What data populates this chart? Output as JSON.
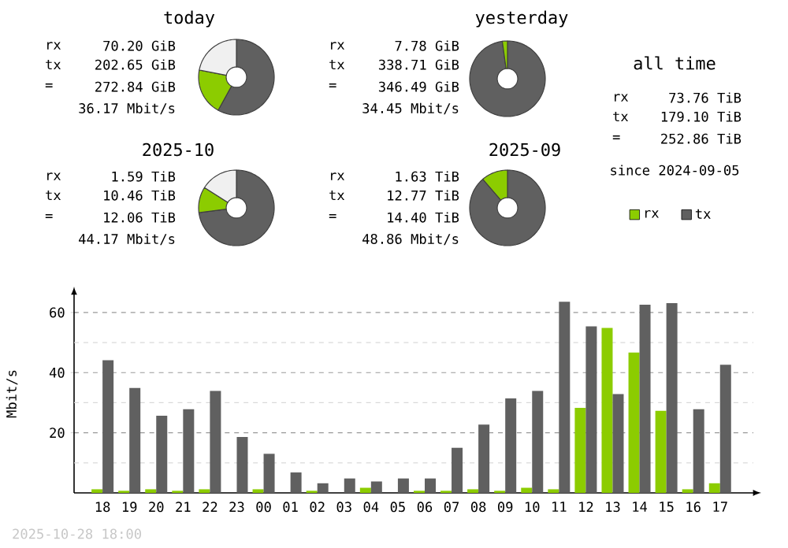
{
  "chart_data": [
    {
      "type": "donut",
      "title": "today",
      "categories": [
        null,
        null,
        null
      ],
      "values": [
        58,
        20,
        22
      ],
      "colors": [
        "#606060",
        "#8ccc00",
        "#f0f0f0"
      ],
      "annotations": [
        "rx",
        "70.20 GiB",
        "tx",
        "202.65 GiB",
        "=",
        "272.84 GiB",
        "36.17 Mbit/s"
      ]
    },
    {
      "type": "donut",
      "title": "yesterday",
      "categories": [
        null,
        null
      ],
      "values": [
        97.8,
        2.2
      ],
      "colors": [
        "#606060",
        "#8ccc00"
      ],
      "annotations": [
        "rx",
        "7.78 GiB",
        "tx",
        "338.71 GiB",
        "=",
        "346.49 GiB",
        "34.45 Mbit/s"
      ]
    },
    {
      "type": "other",
      "title": "all time",
      "annotations": [
        "rx",
        "73.76 TiB",
        "tx",
        "179.10 TiB",
        "=",
        "252.86 TiB",
        "since 2024-09-05"
      ]
    },
    {
      "type": "donut",
      "title": "2025-10",
      "categories": [
        null,
        null,
        null
      ],
      "values": [
        73,
        11,
        16
      ],
      "colors": [
        "#606060",
        "#8ccc00",
        "#f0f0f0"
      ],
      "annotations": [
        "rx",
        "1.59 TiB",
        "tx",
        "10.46 TiB",
        "=",
        "12.06 TiB",
        "44.17 Mbit/s"
      ]
    },
    {
      "type": "donut",
      "title": "2025-09",
      "categories": [
        null,
        null
      ],
      "values": [
        88.7,
        11.3
      ],
      "colors": [
        "#606060",
        "#8ccc00"
      ],
      "annotations": [
        "rx",
        "1.63 TiB",
        "tx",
        "12.77 TiB",
        "=",
        "14.40 TiB",
        "48.86 Mbit/s"
      ]
    },
    {
      "type": "bar",
      "ylabel": "Mbit/s",
      "categories": [
        "18",
        "19",
        "20",
        "21",
        "22",
        "23",
        "00",
        "01",
        "02",
        "03",
        "04",
        "05",
        "06",
        "07",
        "08",
        "09",
        "10",
        "11",
        "12",
        "13",
        "14",
        "15",
        "16",
        "17"
      ],
      "series": [
        {
          "name": "rx",
          "color": "#8ccc00",
          "values": [
            1.2,
            0.7,
            1.2,
            0.7,
            1.2,
            0,
            1.2,
            0,
            0.7,
            0,
            1.7,
            0,
            0.7,
            0.7,
            1.2,
            0.7,
            1.7,
            1.2,
            28.3,
            54.9,
            46.7,
            27.3,
            1.2,
            3.2
          ]
        },
        {
          "name": "tx",
          "color": "#606060",
          "values": [
            44.1,
            34.9,
            25.7,
            27.8,
            33.9,
            18.6,
            13.0,
            6.8,
            3.2,
            4.8,
            3.8,
            4.8,
            4.8,
            15.0,
            22.7,
            31.4,
            33.9,
            63.6,
            55.4,
            32.9,
            62.6,
            63.1,
            27.8,
            42.6
          ]
        }
      ],
      "ylim": [
        0,
        66
      ],
      "yticks": [
        {
          "value": 10,
          "label": null
        },
        20,
        {
          "value": 30,
          "label": null
        },
        40,
        {
          "value": 50,
          "label": null
        },
        60
      ],
      "grid": "y",
      "legend": "top right",
      "annotations": [
        "2025-10-28 18:00"
      ]
    }
  ]
}
